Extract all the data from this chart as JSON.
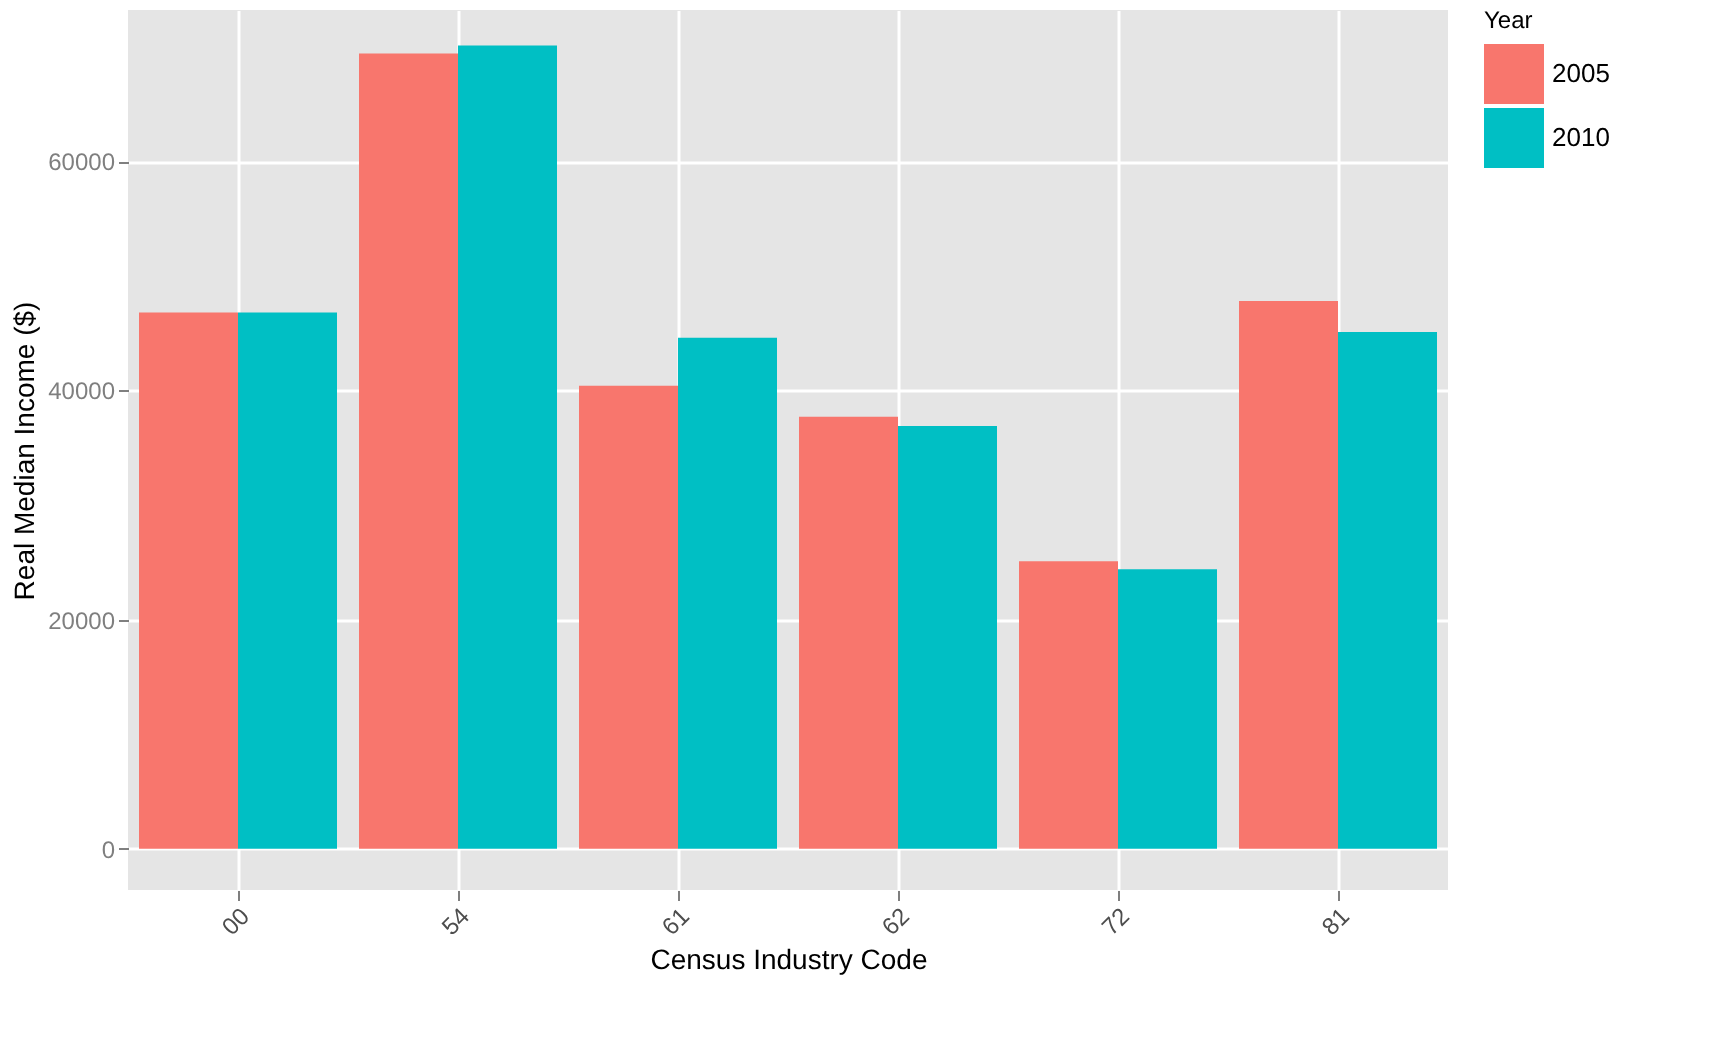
{
  "chart_data": {
    "type": "bar",
    "xlabel": "Census Industry Code",
    "ylabel": "Real Median Income ($)",
    "legend_title": "Year",
    "categories": [
      "00",
      "54",
      "61",
      "62",
      "72",
      "81"
    ],
    "series": [
      {
        "name": "2005",
        "color": "#f8766d",
        "values": [
          46800,
          69400,
          40400,
          37700,
          25100,
          47800
        ]
      },
      {
        "name": "2010",
        "color": "#00bfc4",
        "values": [
          46800,
          70100,
          44600,
          36900,
          24400,
          45100
        ]
      }
    ],
    "ylim": [
      -3600,
      73200
    ],
    "yticks": [
      0,
      20000,
      40000,
      60000
    ],
    "grid": true,
    "legend": "right"
  }
}
